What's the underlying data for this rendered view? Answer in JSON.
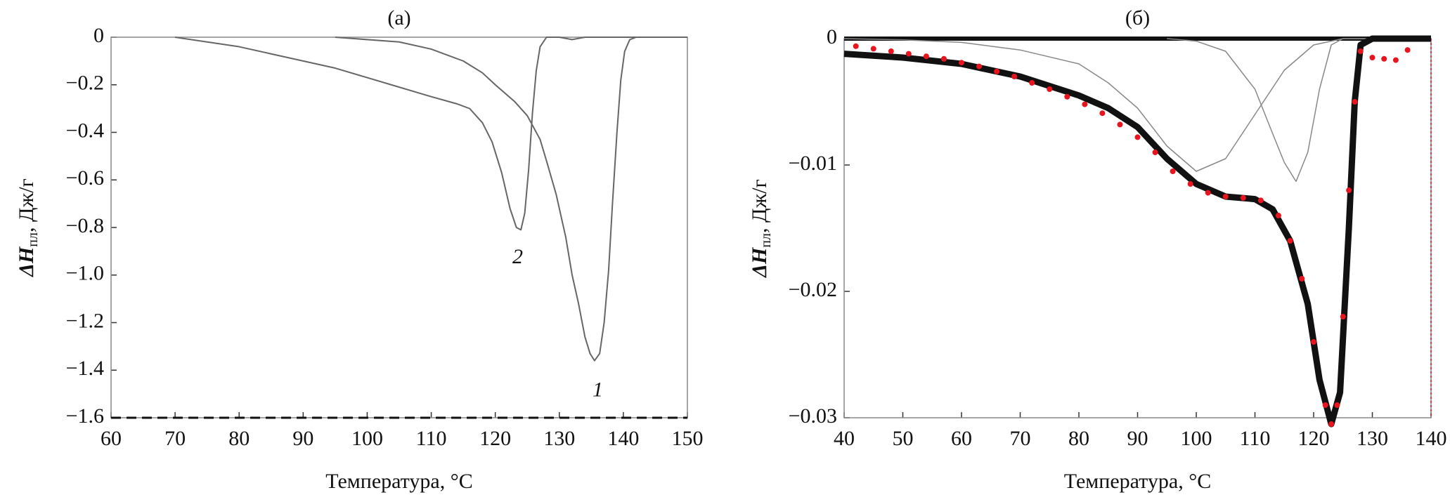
{
  "chart_data": [
    {
      "type": "line",
      "title": "(а)",
      "x_label": "Температура, °C",
      "y_label": "ΔH",
      "y_label_sub": "пл",
      "y_label_unit": ", Дж/г",
      "xlim": [
        60,
        150
      ],
      "ylim": [
        -1.6,
        0
      ],
      "xticks": [
        60,
        70,
        80,
        90,
        100,
        110,
        120,
        130,
        140,
        150
      ],
      "yticks": [
        0,
        {
          "value": -0.2,
          "label": "−0.2"
        },
        {
          "value": -0.4,
          "label": "−0.4"
        },
        {
          "value": -0.6,
          "label": "−0.6"
        },
        {
          "value": -0.8,
          "label": "−0.8"
        },
        {
          "value": -1.0,
          "label": "−1.0"
        },
        {
          "value": -1.2,
          "label": "−1.2"
        },
        {
          "value": -1.4,
          "label": "−1.4"
        },
        {
          "value": -1.6,
          "label": "−1.6"
        }
      ],
      "series": [
        {
          "color": "#666666",
          "width": 2,
          "style": "line",
          "x": [
            95,
            105,
            110,
            115,
            118,
            120,
            123,
            125,
            127,
            128,
            129.5,
            131,
            132,
            133,
            134,
            134.8,
            135.5,
            136.3,
            137,
            137.7,
            138.3,
            139,
            139.6,
            140.2,
            141,
            142,
            150
          ],
          "values": [
            0,
            -0.02,
            -0.05,
            -0.1,
            -0.15,
            -0.2,
            -0.27,
            -0.33,
            -0.43,
            -0.52,
            -0.66,
            -0.84,
            -1.0,
            -1.12,
            -1.26,
            -1.33,
            -1.36,
            -1.33,
            -1.2,
            -0.98,
            -0.7,
            -0.4,
            -0.18,
            -0.06,
            -0.01,
            0,
            0
          ]
        },
        {
          "color": "#666666",
          "width": 2,
          "style": "line",
          "x": [
            70,
            75,
            80,
            85,
            90,
            95,
            100,
            105,
            110,
            114,
            116,
            118,
            119.5,
            121,
            122.3,
            123.3,
            124,
            124.6,
            125.2,
            125.8,
            126.4,
            127,
            128,
            130,
            132,
            134,
            150
          ],
          "values": [
            0,
            -0.02,
            -0.04,
            -0.07,
            -0.1,
            -0.13,
            -0.17,
            -0.21,
            -0.25,
            -0.28,
            -0.3,
            -0.36,
            -0.44,
            -0.57,
            -0.72,
            -0.8,
            -0.81,
            -0.74,
            -0.56,
            -0.32,
            -0.14,
            -0.04,
            0,
            0,
            -0.01,
            0,
            0
          ]
        }
      ],
      "annotations": [
        {
          "text": "1",
          "x": 136,
          "y": -1.49
        },
        {
          "text": "2",
          "x": 123.5,
          "y": -0.93
        }
      ]
    },
    {
      "type": "line",
      "title": "(б)",
      "x_label": "Температура, °C",
      "y_label": "ΔH",
      "y_label_sub": "пл",
      "y_label_unit": ", Дж/г",
      "xlim": [
        40,
        140
      ],
      "ylim": [
        -0.03,
        0
      ],
      "xticks": [
        40,
        50,
        60,
        70,
        80,
        90,
        100,
        110,
        120,
        130,
        140
      ],
      "yticks": [
        0,
        {
          "value": -0.01,
          "label": "−0.01"
        },
        {
          "value": -0.02,
          "label": "−0.02"
        },
        {
          "value": -0.03,
          "label": "−0.03"
        }
      ],
      "series": [
        {
          "color": "#888888",
          "width": 1.5,
          "style": "line",
          "x": [
            40,
            50,
            60,
            70,
            80,
            85,
            90,
            95,
            100,
            105,
            110,
            115,
            120,
            125,
            140
          ],
          "values": [
            0,
            -0.0001,
            -0.0003,
            -0.0009,
            -0.002,
            -0.0035,
            -0.0055,
            -0.0085,
            -0.0105,
            -0.0095,
            -0.006,
            -0.0025,
            -0.0005,
            0,
            0
          ]
        },
        {
          "color": "#888888",
          "width": 1.5,
          "style": "line",
          "x": [
            95,
            100,
            105,
            110,
            113,
            115,
            117,
            119,
            121,
            123,
            125,
            140
          ],
          "values": [
            0,
            -0.0002,
            -0.001,
            -0.004,
            -0.0075,
            -0.0098,
            -0.0113,
            -0.009,
            -0.004,
            -0.0005,
            0,
            0
          ]
        },
        {
          "color": "#111111",
          "width": 9,
          "style": "line",
          "x": [
            40,
            50,
            60,
            70,
            80,
            85,
            90,
            95,
            100,
            105,
            110,
            113,
            116,
            119,
            121,
            123,
            124.5,
            126,
            127,
            128,
            130,
            140
          ],
          "values": [
            -0.0012,
            -0.0015,
            -0.002,
            -0.003,
            -0.0045,
            -0.0055,
            -0.007,
            -0.0095,
            -0.0115,
            -0.0125,
            -0.0127,
            -0.0135,
            -0.016,
            -0.021,
            -0.027,
            -0.0305,
            -0.028,
            -0.015,
            -0.005,
            -0.0005,
            0,
            0
          ]
        },
        {
          "color": "#e8141e",
          "width": 4,
          "style": "dots",
          "x": [
            42,
            45,
            48,
            51,
            54,
            57,
            60,
            63,
            66,
            69,
            72,
            75,
            78,
            81,
            84,
            87,
            90,
            93,
            96,
            99,
            102,
            105,
            108,
            111,
            114,
            116,
            118,
            120,
            122,
            123,
            124,
            125,
            126,
            127,
            128,
            130,
            132,
            134,
            136
          ],
          "values": [
            -0.0006,
            -0.0008,
            -0.001,
            -0.0012,
            -0.0014,
            -0.0016,
            -0.0019,
            -0.0022,
            -0.0026,
            -0.003,
            -0.0035,
            -0.004,
            -0.0046,
            -0.0052,
            -0.0059,
            -0.0068,
            -0.0078,
            -0.009,
            -0.0105,
            -0.0115,
            -0.0122,
            -0.0125,
            -0.0126,
            -0.0128,
            -0.014,
            -0.016,
            -0.019,
            -0.024,
            -0.029,
            -0.0305,
            -0.029,
            -0.022,
            -0.012,
            -0.005,
            -0.001,
            -0.0015,
            -0.0016,
            -0.0017,
            -0.0009
          ]
        }
      ]
    }
  ]
}
